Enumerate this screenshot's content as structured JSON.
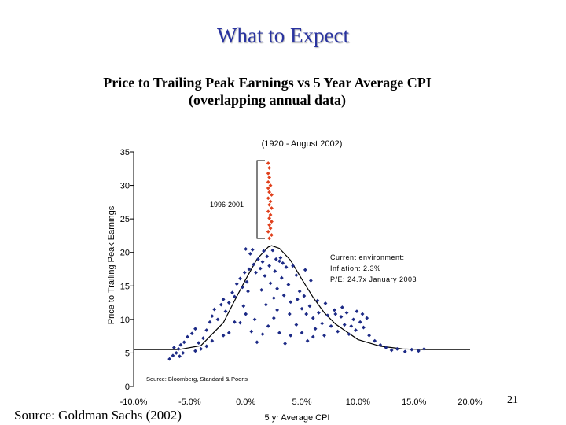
{
  "slide": {
    "title": "What to Expect",
    "source": "Source: Goldman Sachs (2002)",
    "page_number": "21"
  },
  "chart_data": {
    "type": "scatter",
    "title": [
      "Price to Trailing Peak Earnings vs 5 Year Average CPI",
      "(overlapping annual data)"
    ],
    "subtitle": "(1920 - August 2002)",
    "xlabel": "5 yr Average CPI",
    "ylabel": "Price to Trailing Peak Earnings",
    "xlim": [
      -10,
      20
    ],
    "ylim": [
      0,
      35
    ],
    "x_ticks": [
      -10,
      -5,
      0,
      5,
      10,
      15,
      20
    ],
    "x_tick_labels": [
      "-10.0%",
      "-5.0%",
      "0.0%",
      "5.0%",
      "10.0%",
      "15.0%",
      "20.0%"
    ],
    "y_ticks": [
      0,
      5,
      10,
      15,
      20,
      25,
      30,
      35
    ],
    "y_tick_labels": [
      "0",
      "5",
      "10",
      "15",
      "20",
      "25",
      "30",
      "35"
    ],
    "grid": false,
    "colors": {
      "historical": "#1c2a86",
      "recent": "#e0401c",
      "curve": "#000000"
    },
    "annotations": {
      "bracket_label": "1996-2001",
      "current_environment": [
        "Current environment:",
        "Inflation: 2.3%",
        "P/E: 24.7x January 2003"
      ],
      "chart_source": "Source: Bloomberg, Standard & Poor's"
    },
    "series": [
      {
        "name": "",
        "color": "#e0401c",
        "points": [
          [
            2.0,
            33.3
          ],
          [
            2.1,
            32.6
          ],
          [
            2.0,
            31.8
          ],
          [
            2.1,
            31.2
          ],
          [
            2.0,
            30.5
          ],
          [
            2.2,
            30.0
          ],
          [
            2.0,
            29.6
          ],
          [
            2.1,
            29.0
          ],
          [
            2.3,
            28.6
          ],
          [
            2.0,
            28.1
          ],
          [
            2.2,
            27.6
          ],
          [
            2.1,
            27.1
          ],
          [
            2.3,
            26.6
          ],
          [
            2.0,
            26.1
          ],
          [
            2.2,
            25.6
          ],
          [
            2.1,
            25.1
          ],
          [
            2.3,
            24.6
          ],
          [
            2.1,
            24.1
          ],
          [
            2.2,
            23.6
          ],
          [
            2.0,
            23.1
          ],
          [
            2.3,
            22.6
          ],
          [
            2.1,
            22.1
          ]
        ]
      },
      {
        "name": "",
        "color": "#1c2a86",
        "points": [
          [
            -6.5,
            4.6
          ],
          [
            -6.8,
            4.1
          ],
          [
            -6.2,
            5.0
          ],
          [
            -6.0,
            5.6
          ],
          [
            -5.8,
            6.2
          ],
          [
            -5.5,
            6.6
          ],
          [
            -5.2,
            7.4
          ],
          [
            -4.8,
            7.9
          ],
          [
            -4.5,
            8.6
          ],
          [
            -4.2,
            6.5
          ],
          [
            -4.0,
            5.6
          ],
          [
            -3.8,
            7.2
          ],
          [
            -3.5,
            8.4
          ],
          [
            -3.2,
            9.6
          ],
          [
            -3.0,
            10.5
          ],
          [
            -2.8,
            11.5
          ],
          [
            -2.5,
            10.0
          ],
          [
            -2.2,
            12.2
          ],
          [
            -2.0,
            13.0
          ],
          [
            -1.8,
            11.2
          ],
          [
            -1.5,
            12.5
          ],
          [
            -1.2,
            14.0
          ],
          [
            -1.0,
            13.4
          ],
          [
            -0.8,
            15.3
          ],
          [
            -0.5,
            16.1
          ],
          [
            -0.3,
            14.8
          ],
          [
            -0.1,
            17.0
          ],
          [
            -0.2,
            12.0
          ],
          [
            0.1,
            15.6
          ],
          [
            0.3,
            17.5
          ],
          [
            0.4,
            19.8
          ],
          [
            0.6,
            20.4
          ],
          [
            0.7,
            18.2
          ],
          [
            0.9,
            17.0
          ],
          [
            1.1,
            19.0
          ],
          [
            1.3,
            17.6
          ],
          [
            1.5,
            18.6
          ],
          [
            1.7,
            16.5
          ],
          [
            1.9,
            19.4
          ],
          [
            2.1,
            18.0
          ],
          [
            2.2,
            15.4
          ],
          [
            2.4,
            20.3
          ],
          [
            2.6,
            17.2
          ],
          [
            2.8,
            14.6
          ],
          [
            3.0,
            18.7
          ],
          [
            3.2,
            16.2
          ],
          [
            3.4,
            13.6
          ],
          [
            3.6,
            17.8
          ],
          [
            3.8,
            15.2
          ],
          [
            4.0,
            12.6
          ],
          [
            4.2,
            18.0
          ],
          [
            4.5,
            16.6
          ],
          [
            4.8,
            14.2
          ],
          [
            5.0,
            11.6
          ],
          [
            5.2,
            13.5
          ],
          [
            5.4,
            10.8
          ],
          [
            5.7,
            12.0
          ],
          [
            6.0,
            10.2
          ],
          [
            6.2,
            8.6
          ],
          [
            6.5,
            11.0
          ],
          [
            6.8,
            9.4
          ],
          [
            7.0,
            7.6
          ],
          [
            7.3,
            10.6
          ],
          [
            7.6,
            9.0
          ],
          [
            7.9,
            11.4
          ],
          [
            8.2,
            8.2
          ],
          [
            8.5,
            10.4
          ],
          [
            8.8,
            9.2
          ],
          [
            9.0,
            11.0
          ],
          [
            9.2,
            7.8
          ],
          [
            9.6,
            10.0
          ],
          [
            9.9,
            11.2
          ],
          [
            10.2,
            9.6
          ],
          [
            10.5,
            8.8
          ],
          [
            10.8,
            10.2
          ],
          [
            11.0,
            7.6
          ],
          [
            11.5,
            6.8
          ],
          [
            12.0,
            6.2
          ],
          [
            12.5,
            5.8
          ],
          [
            13.0,
            5.4
          ],
          [
            13.5,
            5.6
          ],
          [
            14.2,
            5.2
          ],
          [
            14.8,
            5.5
          ],
          [
            15.4,
            5.3
          ],
          [
            15.9,
            5.6
          ],
          [
            -5.6,
            5.0
          ],
          [
            -5.9,
            4.5
          ],
          [
            -6.4,
            5.8
          ],
          [
            -3.0,
            6.8
          ],
          [
            -1.5,
            8.0
          ],
          [
            -0.5,
            9.5
          ],
          [
            0.0,
            10.8
          ],
          [
            0.5,
            8.2
          ],
          [
            1.0,
            6.6
          ],
          [
            1.5,
            7.8
          ],
          [
            2.0,
            9.0
          ],
          [
            2.5,
            10.2
          ],
          [
            3.0,
            8.0
          ],
          [
            3.5,
            6.4
          ],
          [
            4.0,
            7.6
          ],
          [
            4.5,
            9.2
          ],
          [
            5.0,
            8.0
          ],
          [
            5.5,
            6.8
          ],
          [
            6.0,
            7.4
          ],
          [
            0.8,
            10.0
          ],
          [
            1.8,
            12.2
          ],
          [
            2.8,
            11.4
          ],
          [
            3.9,
            10.8
          ],
          [
            1.4,
            14.4
          ],
          [
            2.5,
            13.2
          ],
          [
            0.2,
            14.2
          ],
          [
            -1.0,
            9.6
          ],
          [
            -2.0,
            7.6
          ],
          [
            -3.5,
            6.0
          ],
          [
            -4.5,
            5.3
          ],
          [
            3.1,
            19.2
          ],
          [
            3.3,
            18.4
          ],
          [
            2.7,
            19.0
          ],
          [
            1.6,
            20.2
          ],
          [
            4.6,
            13.0
          ],
          [
            5.8,
            15.8
          ],
          [
            6.4,
            12.8
          ],
          [
            7.1,
            12.4
          ],
          [
            8.0,
            10.8
          ],
          [
            8.6,
            11.8
          ],
          [
            9.4,
            9.0
          ],
          [
            9.8,
            8.4
          ],
          [
            10.4,
            10.8
          ],
          [
            5.3,
            17.4
          ],
          [
            0.0,
            20.5
          ]
        ]
      }
    ],
    "curve": {
      "baseline": 5.5,
      "peak_x": 2.3,
      "peak_y": 21.0,
      "x": [
        -10,
        -8,
        -6,
        -4,
        -2,
        -1,
        0,
        1,
        2,
        2.3,
        3,
        4,
        5,
        6,
        7,
        8,
        10,
        12,
        14,
        16,
        18,
        20
      ],
      "y": [
        5.5,
        5.5,
        5.5,
        6.1,
        9.5,
        12.8,
        16.0,
        19.0,
        20.8,
        21.0,
        20.6,
        18.8,
        16.0,
        13.3,
        11.0,
        9.3,
        7.0,
        6.0,
        5.6,
        5.5,
        5.5,
        5.5
      ]
    }
  }
}
